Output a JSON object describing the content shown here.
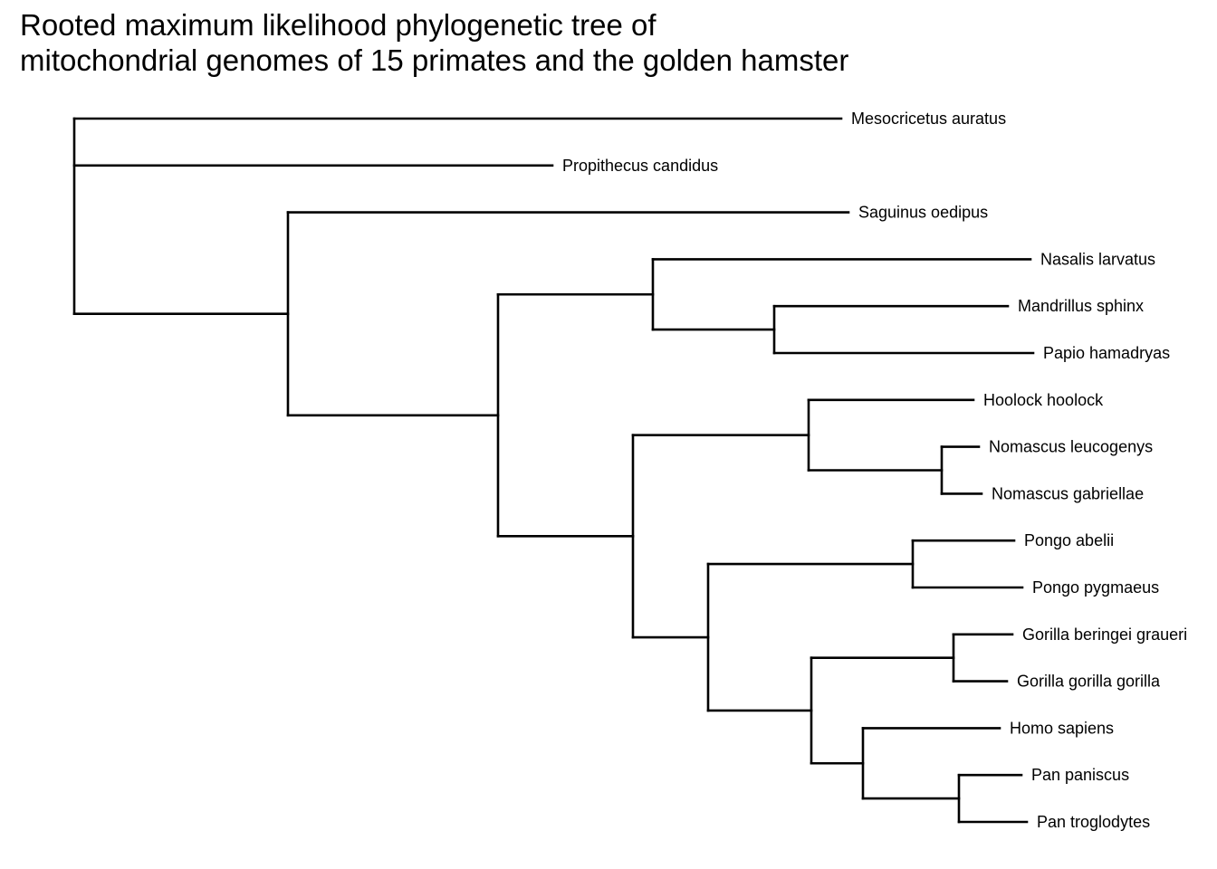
{
  "title": {
    "line1": "Rooted maximum likelihood phylogenetic tree of",
    "line2": "mitochondrial genomes of 15 primates and the golden hamster"
  },
  "tree": {
    "line_color": "#000000",
    "tips": [
      {
        "id": "mesocricetus",
        "label": "Mesocricetus auratus"
      },
      {
        "id": "propithecus",
        "label": "Propithecus candidus"
      },
      {
        "id": "saguinus",
        "label": "Saguinus oedipus"
      },
      {
        "id": "nasalis",
        "label": "Nasalis larvatus"
      },
      {
        "id": "mandrillus",
        "label": "Mandrillus sphinx"
      },
      {
        "id": "papio",
        "label": "Papio hamadryas"
      },
      {
        "id": "hoolock",
        "label": "Hoolock hoolock"
      },
      {
        "id": "nomascus-leucogenys",
        "label": "Nomascus leucogenys"
      },
      {
        "id": "nomascus-gabriellae",
        "label": "Nomascus gabriellae"
      },
      {
        "id": "pongo-abelii",
        "label": "Pongo abelii"
      },
      {
        "id": "pongo-pygmaeus",
        "label": "Pongo pygmaeus"
      },
      {
        "id": "gorilla-beringei",
        "label": "Gorilla beringei graueri"
      },
      {
        "id": "gorilla-gorilla",
        "label": "Gorilla gorilla gorilla"
      },
      {
        "id": "homo",
        "label": "Homo sapiens"
      },
      {
        "id": "pan-paniscus",
        "label": "Pan paniscus"
      },
      {
        "id": "pan-troglodytes",
        "label": "Pan troglodytes"
      }
    ],
    "topology": [
      "mesocricetus",
      "propithecus",
      [
        "saguinus",
        [
          [
            "nasalis",
            [
              "mandrillus",
              "papio"
            ]
          ],
          [
            [
              "hoolock",
              [
                "nomascus-leucogenys",
                "nomascus-gabriellae"
              ]
            ],
            [
              [
                "pongo-abelii",
                "pongo-pygmaeus"
              ],
              [
                [
                  "gorilla-beringei",
                  "gorilla-gorilla"
                ],
                [
                  "homo",
                  [
                    "pan-paniscus",
                    "pan-troglodytes"
                  ]
                ]
              ]
            ]
          ]
        ]
      ]
    ]
  }
}
